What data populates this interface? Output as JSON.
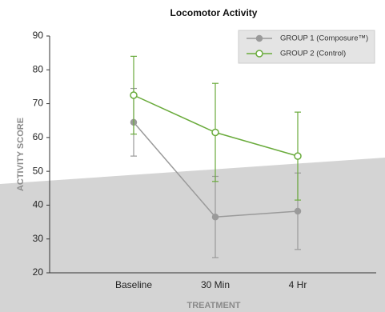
{
  "chart_data": {
    "type": "line",
    "title": "Locomotor Activity",
    "x_label": "TREATMENT",
    "y_label": "ACTIVITY SCORE",
    "categories": [
      "Baseline",
      "30 Min",
      "4 Hr"
    ],
    "ylim": [
      20,
      90
    ],
    "yticks": [
      20,
      30,
      40,
      50,
      60,
      70,
      80,
      90
    ],
    "legend": "upper right",
    "series": [
      {
        "name": "GROUP 1 (Composure™)",
        "color": "#9a9a9a",
        "marker": "filled",
        "values": [
          64.5,
          36.5,
          38.2
        ],
        "errors": [
          10,
          12,
          11.3
        ]
      },
      {
        "name": "GROUP 2 (Control)",
        "color": "#6aab3c",
        "marker": "hollow",
        "values": [
          72.5,
          61.5,
          54.5
        ],
        "errors": [
          11.5,
          14.5,
          13
        ]
      }
    ]
  }
}
